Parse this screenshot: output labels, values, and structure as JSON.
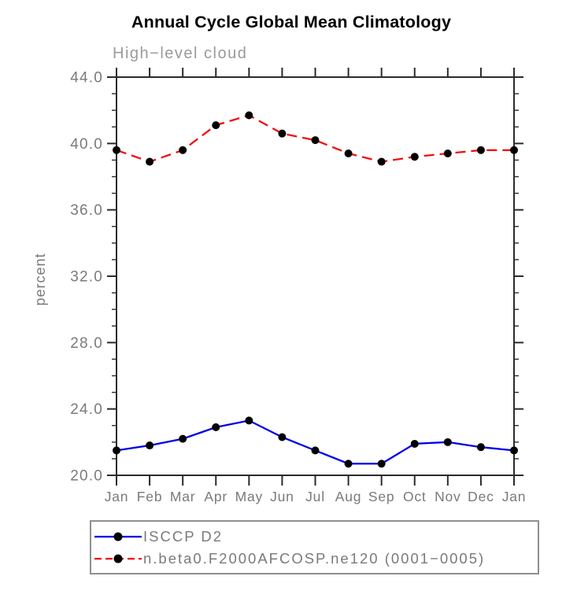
{
  "chart_data": {
    "type": "line",
    "title": "Annual Cycle Global Mean Climatology",
    "subtitle": "High−level cloud",
    "xlabel": "",
    "ylabel": "percent",
    "ylim": [
      20.0,
      44.0
    ],
    "ytick_interval": 4.0,
    "ytick_minor_interval": 1.0,
    "ytick_labels": [
      "20.0",
      "24.0",
      "28.0",
      "32.0",
      "36.0",
      "40.0",
      "44.0"
    ],
    "categories": [
      "Jan",
      "Feb",
      "Mar",
      "Apr",
      "May",
      "Jun",
      "Jul",
      "Aug",
      "Sep",
      "Oct",
      "Nov",
      "Dec",
      "Jan"
    ],
    "grid": false,
    "legend_position": "bottom-left",
    "series": [
      {
        "name": "ISCCP D2",
        "line_style": "solid",
        "color": "#0000e8",
        "marker": "filled-circle",
        "marker_color": "#000000",
        "values": [
          21.5,
          21.8,
          22.2,
          22.9,
          23.3,
          22.3,
          21.5,
          20.7,
          20.7,
          21.9,
          22.0,
          21.7,
          21.5
        ]
      },
      {
        "name": "n.beta0.F2000AFCOSP.ne120 (0001−0005)",
        "line_style": "dashed",
        "color": "#f01010",
        "marker": "filled-circle",
        "marker_color": "#000000",
        "values": [
          39.6,
          38.9,
          39.6,
          41.1,
          41.7,
          40.6,
          40.2,
          39.4,
          38.9,
          39.2,
          39.4,
          39.6,
          39.6
        ]
      }
    ]
  },
  "colors": {
    "axis": "#2b2b2b",
    "tick_label": "#7a7a7a",
    "subtitle": "#9a9a9a",
    "title": "#000000",
    "legend_border": "#8f8f8f"
  }
}
